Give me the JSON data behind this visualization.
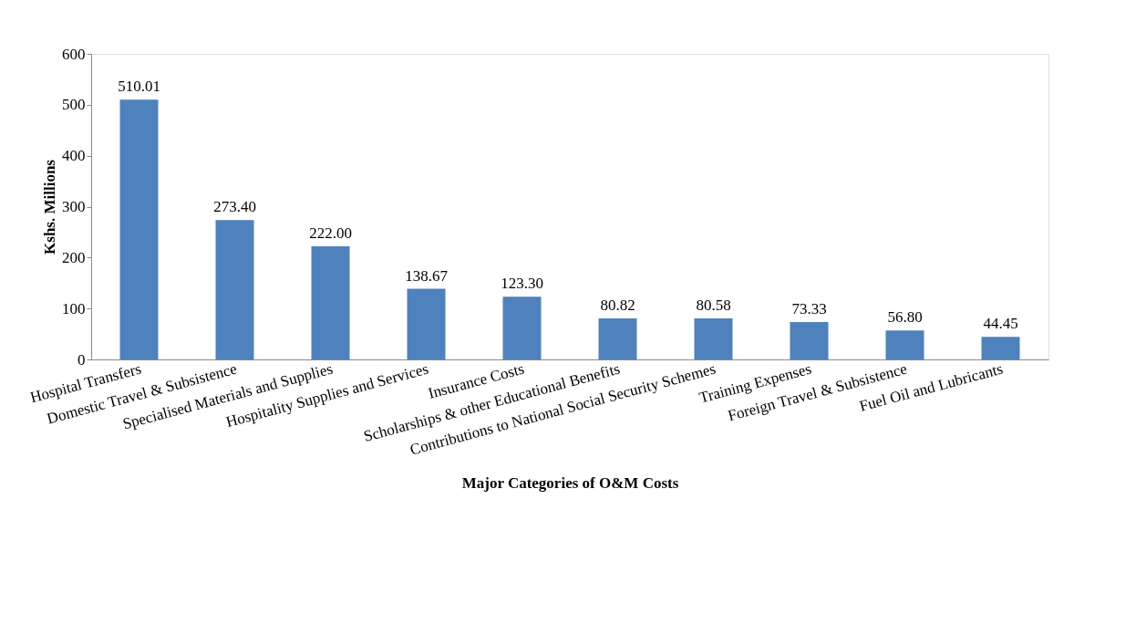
{
  "chart_data": {
    "type": "bar",
    "xlabel": "Major Categories of O&M Costs",
    "ylabel": "Kshs. Millions",
    "categories": [
      "Hospital Transfers",
      "Domestic Travel & Subsistence",
      "Specialised Materials and Supplies",
      "Hospitality Supplies and Services",
      "Insurance Costs",
      "Scholarships & other Educational Benefits",
      "Contributions to National Social Security Schemes",
      "Training Expenses",
      "Foreign Travel & Subsistence",
      "Fuel Oil and Lubricants"
    ],
    "values": [
      510.01,
      273.4,
      222.0,
      138.67,
      123.3,
      80.82,
      80.58,
      73.33,
      56.8,
      44.45
    ],
    "value_labels": [
      "510.01",
      "273.40",
      "222.00",
      "138.67",
      "123.30",
      "80.82",
      "80.58",
      "73.33",
      "56.80",
      "44.45"
    ],
    "color": "#4f81bd",
    "ylim": [
      0,
      600
    ],
    "yticks": [
      0,
      100,
      200,
      300,
      400,
      500,
      600
    ],
    "grid": false
  }
}
